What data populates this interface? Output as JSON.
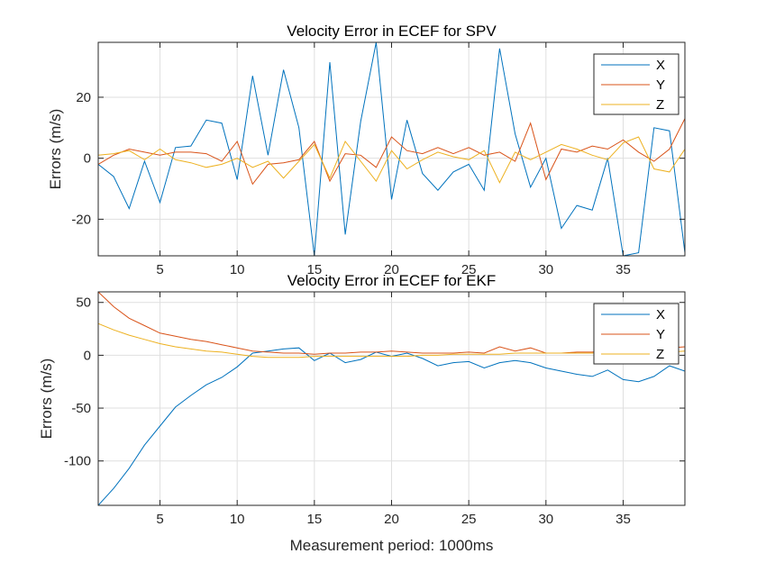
{
  "chart_data": [
    {
      "type": "line",
      "title": "Velocity Error in ECEF for SPV",
      "xlabel": "",
      "ylabel": "Errors (m/s)",
      "xlim": [
        1,
        39
      ],
      "ylim": [
        -32,
        38
      ],
      "xticks": [
        5,
        10,
        15,
        20,
        25,
        30,
        35
      ],
      "yticks": [
        -20,
        0,
        20
      ],
      "grid": true,
      "legend_position": "top-right",
      "x": [
        1,
        2,
        3,
        4,
        5,
        6,
        7,
        8,
        9,
        10,
        11,
        12,
        13,
        14,
        15,
        16,
        17,
        18,
        19,
        20,
        21,
        22,
        23,
        24,
        25,
        26,
        27,
        28,
        29,
        30,
        31,
        32,
        33,
        34,
        35,
        36,
        37,
        38,
        39
      ],
      "series": [
        {
          "name": "X",
          "color": "#0072BD",
          "values": [
            -2,
            -6,
            -16.5,
            -1,
            -14.5,
            3.5,
            4,
            12.5,
            11.5,
            -7,
            27,
            1,
            29,
            10,
            -32,
            31.5,
            -25,
            12,
            38,
            -13.5,
            12.5,
            -5,
            -10.5,
            -4.5,
            -2,
            -10.5,
            36,
            8,
            -9.5,
            0,
            -23,
            -15.5,
            -17,
            0,
            -32,
            -31,
            10,
            9,
            -31
          ]
        },
        {
          "name": "Y",
          "color": "#D95319",
          "values": [
            -2,
            1,
            3,
            2,
            1,
            2,
            2,
            1.5,
            -1,
            5.5,
            -8.5,
            -2,
            -1.5,
            -0.5,
            5.5,
            -7.5,
            1.5,
            1,
            -3,
            7,
            2.5,
            1.5,
            3.5,
            1.5,
            3.5,
            1,
            2,
            -1,
            11.5,
            -7,
            3,
            2,
            4,
            3,
            6,
            2,
            -1,
            3,
            13
          ]
        },
        {
          "name": "Z",
          "color": "#EDB120",
          "values": [
            1,
            1.5,
            2.5,
            -0.5,
            3,
            -0.5,
            -1.5,
            -3,
            -2,
            0,
            -3,
            -1,
            -6.5,
            -1,
            4.5,
            -6.5,
            5.5,
            -1,
            -7.5,
            2.5,
            -3.5,
            -0.5,
            2,
            0.5,
            -0.5,
            2.5,
            -8,
            2,
            -0.5,
            2,
            4.5,
            3,
            1,
            -0.5,
            5,
            7,
            -3.5,
            -4.5,
            3
          ]
        }
      ]
    },
    {
      "type": "line",
      "title": "Velocity Error in ECEF for EKF",
      "xlabel": "Measurement period: 1000ms",
      "ylabel": "Errors (m/s)",
      "xlim": [
        1,
        39
      ],
      "ylim": [
        -142,
        60
      ],
      "xticks": [
        5,
        10,
        15,
        20,
        25,
        30,
        35
      ],
      "yticks": [
        -100,
        -50,
        0,
        50
      ],
      "grid": true,
      "legend_position": "top-right",
      "x": [
        1,
        2,
        3,
        4,
        5,
        6,
        7,
        8,
        9,
        10,
        11,
        12,
        13,
        14,
        15,
        16,
        17,
        18,
        19,
        20,
        21,
        22,
        23,
        24,
        25,
        26,
        27,
        28,
        29,
        30,
        31,
        32,
        33,
        34,
        35,
        36,
        37,
        38,
        39
      ],
      "series": [
        {
          "name": "X",
          "color": "#0072BD",
          "values": [
            -142,
            -126,
            -107,
            -85,
            -67,
            -49,
            -38,
            -28,
            -21,
            -11,
            2,
            4,
            6,
            7,
            -5,
            2,
            -7,
            -4,
            3,
            -1,
            2,
            -3,
            -10,
            -7,
            -6,
            -12,
            -7,
            -5,
            -7,
            -12,
            -15,
            -18,
            -20,
            -14,
            -23,
            -25,
            -20,
            -10,
            -15
          ]
        },
        {
          "name": "Y",
          "color": "#D95319",
          "values": [
            60,
            46,
            35,
            28,
            21,
            18,
            15,
            13,
            10,
            7,
            4,
            3,
            2,
            2,
            1,
            2,
            2,
            3,
            3,
            4,
            3,
            2,
            2,
            2,
            3,
            2,
            8,
            4,
            7,
            2,
            2,
            3,
            3,
            4,
            4,
            5,
            6,
            7,
            8
          ]
        },
        {
          "name": "Z",
          "color": "#EDB120",
          "values": [
            30,
            24,
            19,
            15,
            11,
            8,
            6,
            4,
            3,
            1,
            -1,
            -2,
            -2,
            -2,
            -1,
            -1,
            -1,
            -1,
            -1,
            -1,
            -1,
            0,
            0,
            1,
            1,
            1,
            1,
            2,
            2,
            2,
            2,
            2,
            2,
            3,
            3,
            3,
            3,
            3,
            4
          ]
        }
      ]
    }
  ]
}
